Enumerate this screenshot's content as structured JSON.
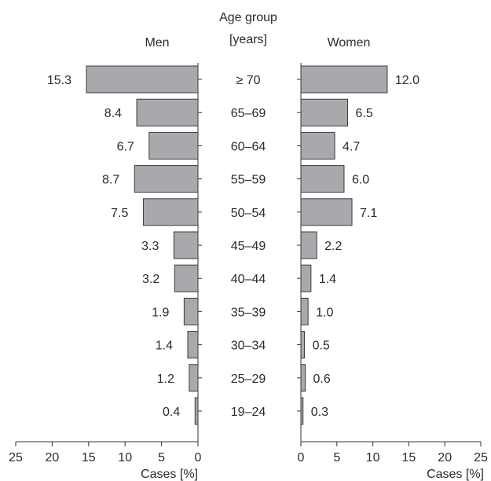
{
  "chart_data": {
    "type": "bar",
    "orientation": "horizontal",
    "layout": "population-pyramid",
    "center_label": [
      "Age group",
      "[years]"
    ],
    "categories": [
      "≥ 70",
      "65–69",
      "60–64",
      "55–59",
      "50–54",
      "45–49",
      "40–44",
      "35–39",
      "30–34",
      "25–29",
      "19–24"
    ],
    "series": [
      {
        "name": "Men",
        "side": "left",
        "values": [
          15.3,
          8.4,
          6.7,
          8.7,
          7.5,
          3.3,
          3.2,
          1.9,
          1.4,
          1.2,
          0.4
        ],
        "value_labels": [
          "15.3",
          "8.4",
          "6.7",
          "8.7",
          "7.5",
          "3.3",
          "3.2",
          "1.9",
          "1.4",
          "1.2",
          "0.4"
        ]
      },
      {
        "name": "Women",
        "side": "right",
        "values": [
          12.0,
          6.5,
          4.7,
          6.0,
          7.1,
          2.2,
          1.4,
          1.0,
          0.5,
          0.6,
          0.3
        ],
        "value_labels": [
          "12.0",
          "6.5",
          "4.7",
          "6.0",
          "7.1",
          "2.2",
          "1.4",
          "1.0",
          "0.5",
          "0.6",
          "0.3"
        ]
      }
    ],
    "xlabel": "Cases [%]",
    "xlim": [
      0,
      25
    ],
    "xticks": [
      0,
      5,
      10,
      15,
      20,
      25
    ],
    "left_xtick_labels": [
      "25",
      "20",
      "15",
      "10",
      "5",
      "0"
    ],
    "right_xtick_labels": [
      "0",
      "5",
      "10",
      "15",
      "20",
      "25"
    ],
    "grid": false,
    "colors": {
      "bar_fill": "#a9a9ad",
      "bar_stroke": "#3a3a3a",
      "axis": "#333333",
      "text": "#2b2b2b"
    }
  }
}
